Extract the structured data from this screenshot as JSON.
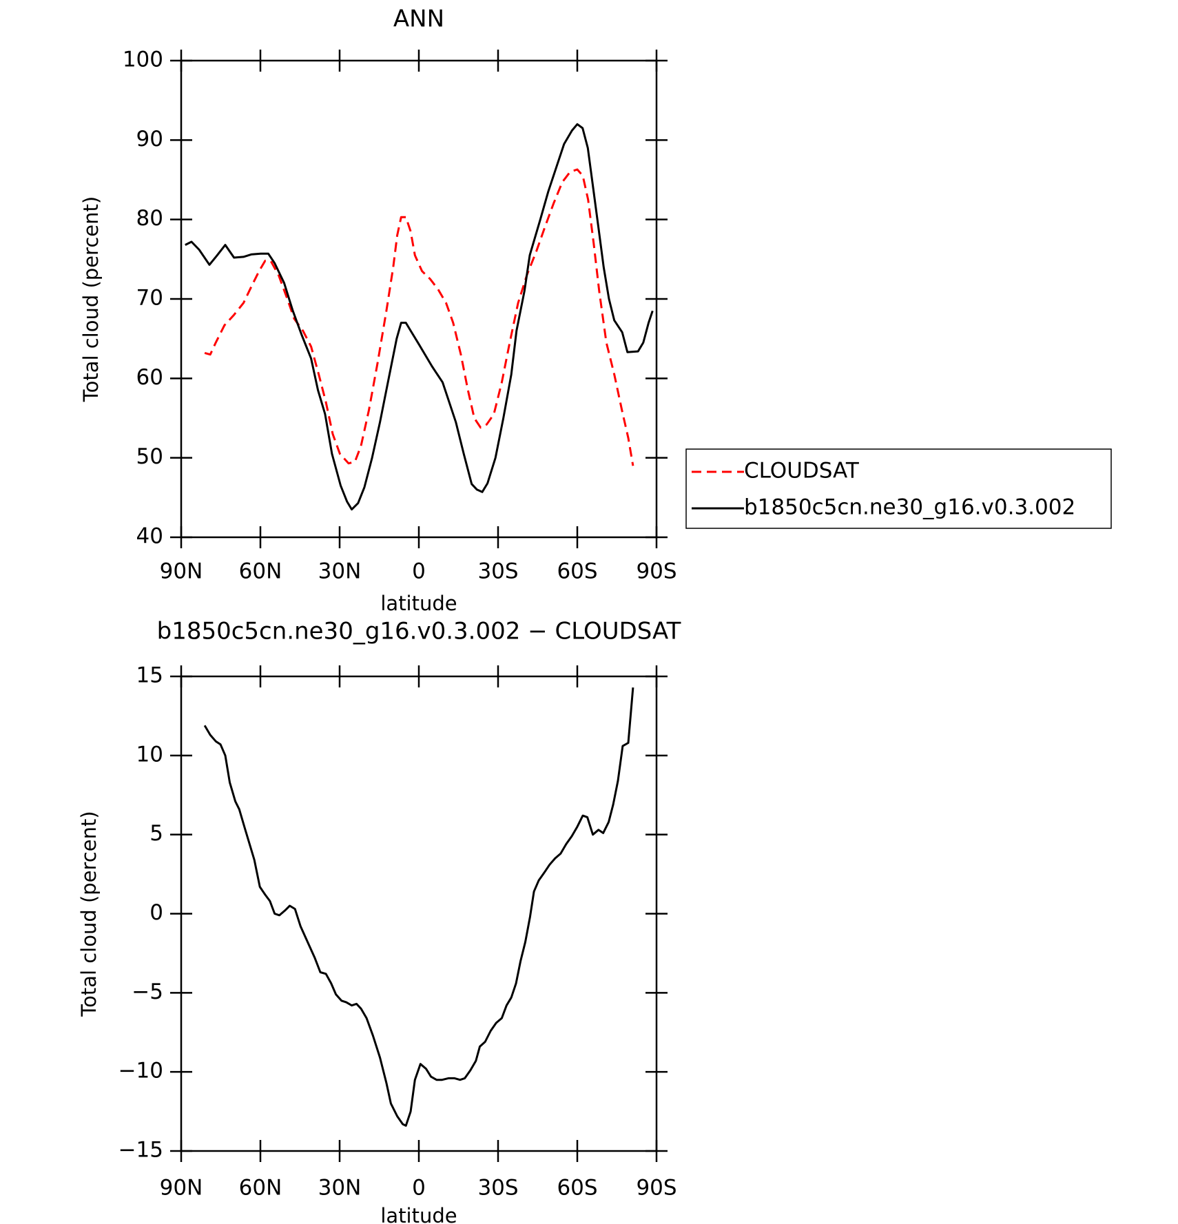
{
  "chart_data": [
    {
      "type": "line",
      "title": "ANN",
      "xlabel": "latitude",
      "ylabel": "Total cloud (percent)",
      "xlim": [
        90,
        -90
      ],
      "xticks": [
        {
          "value": 90,
          "label": "90N"
        },
        {
          "value": 60,
          "label": "60N"
        },
        {
          "value": 30,
          "label": "30N"
        },
        0,
        {
          "value": -30,
          "label": "30S"
        },
        {
          "value": -60,
          "label": "60S"
        },
        {
          "value": -90,
          "label": "90S"
        }
      ],
      "ylim": [
        40,
        100
      ],
      "yticks": [
        40,
        50,
        60,
        70,
        80,
        90,
        100
      ],
      "legend": "right",
      "series": [
        {
          "name": "CLOUDSAT",
          "color": "#ff0000",
          "dashed": true,
          "x": [
            81.1,
            79,
            76.9,
            73.6,
            70,
            66.4,
            63.5,
            60.5,
            58.2,
            56.1,
            53.1,
            49.8,
            47.2,
            43.9,
            40.8,
            37.9,
            35.2,
            32.6,
            29.9,
            26.6,
            24.2,
            21.9,
            18.9,
            15.6,
            12.3,
            9.7,
            8.2,
            6.7,
            4.9,
            3.1,
            1.5,
            -1.2,
            -4.3,
            -7.3,
            -10.3,
            -13,
            -15.9,
            -18.6,
            -21,
            -23.4,
            -25.7,
            -28.4,
            -31.4,
            -34.4,
            -37.6,
            -40.9,
            -44.5,
            -47.7,
            -51,
            -54.3,
            -57.3,
            -60,
            -62.1,
            -64.1,
            -66.2,
            -68.3,
            -71,
            -74,
            -76.9,
            -79.3,
            -81.1
          ],
          "values": [
            63.2,
            63,
            64.5,
            66.7,
            68,
            69.5,
            71.5,
            73.5,
            74.8,
            74.8,
            73,
            70,
            67.5,
            66,
            64,
            60.5,
            57,
            53,
            50.5,
            49.3,
            49.5,
            51.5,
            56,
            62,
            68.5,
            74,
            78,
            80.3,
            80.3,
            78.5,
            75.5,
            73.5,
            72.5,
            71.2,
            69.5,
            67,
            63,
            58.5,
            55,
            53.8,
            54.2,
            55.5,
            59.5,
            64.5,
            69.5,
            73,
            76,
            79,
            82,
            84.7,
            86,
            86.3,
            85.5,
            82.5,
            77,
            71,
            64.5,
            60.5,
            56,
            52.5,
            49
          ]
        },
        {
          "name": "b1850c5cn.ne30_g16.v0.3.002",
          "color": "#000000",
          "dashed": false,
          "x": [
            88.5,
            86.1,
            83.2,
            79.3,
            76.6,
            73.3,
            70,
            66.4,
            63.5,
            59.9,
            57,
            54.6,
            51,
            47.7,
            44.4,
            40.8,
            38.2,
            35.5,
            32.9,
            29.6,
            27.2,
            25.4,
            23,
            20.6,
            17.7,
            14.7,
            11.7,
            8.4,
            6.7,
            4.9,
            3.1,
            0,
            -5,
            -9,
            -11,
            -14,
            -17,
            -20,
            -22,
            -24,
            -26,
            -29,
            -32,
            -35,
            -37,
            -40,
            -42,
            -46,
            -49,
            -52,
            -55,
            -58,
            -60,
            -62,
            -64,
            -66,
            -68,
            -70,
            -72,
            -74,
            -77,
            -79,
            -83,
            -85,
            -87,
            -88.5
          ],
          "values": [
            76.8,
            77.2,
            76.2,
            74.3,
            75.4,
            76.8,
            75.2,
            75.3,
            75.6,
            75.7,
            75.7,
            74.5,
            72,
            68.5,
            65.5,
            62.5,
            58.5,
            55.5,
            50.5,
            46.5,
            44.5,
            43.5,
            44.3,
            46.3,
            50,
            54.5,
            59.5,
            65,
            67,
            67,
            66,
            64.3,
            61.5,
            59.5,
            57.5,
            54.5,
            50.5,
            46.7,
            46,
            45.7,
            46.8,
            50,
            55,
            60.5,
            66,
            71,
            75.5,
            80,
            83.5,
            86.5,
            89.5,
            91.2,
            92,
            91.5,
            89,
            84,
            79,
            74,
            70,
            67.3,
            65.8,
            63.3,
            63.4,
            64.5,
            67,
            68.5
          ]
        }
      ]
    },
    {
      "type": "line",
      "title": "b1850c5cn.ne30_g16.v0.3.002 − CLOUDSAT",
      "xlabel": "latitude",
      "ylabel": "Total cloud (percent)",
      "xlim": [
        90,
        -90
      ],
      "xticks": [
        {
          "value": 90,
          "label": "90N"
        },
        {
          "value": 60,
          "label": "60N"
        },
        {
          "value": 30,
          "label": "30N"
        },
        0,
        {
          "value": -30,
          "label": "30S"
        },
        {
          "value": -60,
          "label": "60S"
        },
        {
          "value": -90,
          "label": "90S"
        }
      ],
      "ylim": [
        -15,
        15
      ],
      "yticks": [
        {
          "value": -15,
          "label": "−15"
        },
        {
          "value": -10,
          "label": "−10"
        },
        {
          "value": -5,
          "label": "−5"
        },
        0,
        5,
        10,
        15
      ],
      "series": [
        {
          "color": "#000000",
          "dashed": false,
          "x": [
            81.1,
            79,
            76.9,
            75.1,
            73.3,
            71.6,
            69.5,
            68,
            65.9,
            64.1,
            62.3,
            60.2,
            58.2,
            56.4,
            54.6,
            52.8,
            50.7,
            48.9,
            46.9,
            44.8,
            42.1,
            39.4,
            37.3,
            35.2,
            33.2,
            31.4,
            29.3,
            27.5,
            25.4,
            23.6,
            21.9,
            19.8,
            17.4,
            14.7,
            12.3,
            10.6,
            8.2,
            6.1,
            4.9,
            3.1,
            1.5,
            -0.6,
            -2.7,
            -4.6,
            -6.7,
            -8.8,
            -11.2,
            -13.5,
            -15.6,
            -17.4,
            -19.5,
            -21.6,
            -23.1,
            -25.1,
            -27.2,
            -29.3,
            -31.4,
            -33.2,
            -35,
            -36.8,
            -38.5,
            -40.3,
            -42.1,
            -43.6,
            -45.4,
            -47.5,
            -49.5,
            -51.6,
            -53.7,
            -55.8,
            -57.9,
            -60,
            -62.1,
            -63.8,
            -65.9,
            -68,
            -69.8,
            -71.9,
            -73.6,
            -75.4,
            -77.2,
            -79.3,
            -81.1
          ],
          "values": [
            11.9,
            11.3,
            10.9,
            10.7,
            10,
            8.3,
            7.1,
            6.6,
            5.4,
            4.4,
            3.4,
            1.7,
            1.2,
            0.8,
            0,
            -0.1,
            0.2,
            0.5,
            0.3,
            -0.8,
            -1.8,
            -2.8,
            -3.7,
            -3.8,
            -4.4,
            -5.1,
            -5.5,
            -5.6,
            -5.8,
            -5.7,
            -6,
            -6.6,
            -7.7,
            -9.1,
            -10.7,
            -12,
            -12.8,
            -13.3,
            -13.4,
            -12.5,
            -10.5,
            -9.5,
            -9.8,
            -10.3,
            -10.5,
            -10.5,
            -10.4,
            -10.4,
            -10.5,
            -10.4,
            -9.9,
            -9.3,
            -8.4,
            -8.1,
            -7.4,
            -6.9,
            -6.6,
            -5.8,
            -5.3,
            -4.4,
            -3,
            -1.8,
            -0.2,
            1.4,
            2.1,
            2.6,
            3.1,
            3.5,
            3.8,
            4.4,
            4.9,
            5.5,
            6.2,
            6.1,
            5,
            5.3,
            5.1,
            5.8,
            6.9,
            8.4,
            10.6,
            10.8,
            14.3
          ]
        }
      ]
    }
  ]
}
